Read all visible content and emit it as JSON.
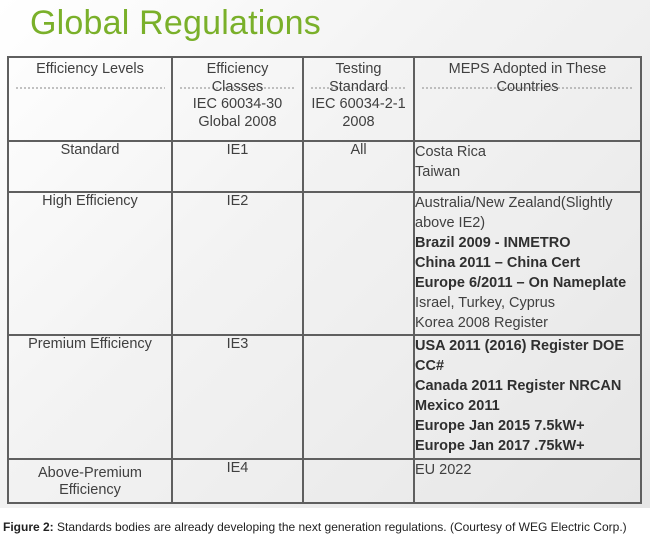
{
  "title": "Global Regulations",
  "table": {
    "headers": [
      [
        "Efficiency Levels"
      ],
      [
        "Efficiency Classes",
        "IEC 60034-30",
        "Global 2008"
      ],
      [
        "Testing",
        "Standard",
        "IEC 60034-2-1",
        "2008"
      ],
      [
        "MEPS Adopted in These",
        "Countries"
      ]
    ],
    "rows": [
      {
        "level": "Standard",
        "class": "IE1",
        "testing": "All",
        "countries": [
          {
            "text": "Costa Rica",
            "bold": false
          },
          {
            "text": "Taiwan",
            "bold": false
          }
        ]
      },
      {
        "level": "High Efficiency",
        "class": "IE2",
        "testing": "",
        "countries": [
          {
            "text": "Australia/New Zealand(Slightly above IE2)",
            "bold": false
          },
          {
            "text": "Brazil 2009  - INMETRO",
            "bold": true
          },
          {
            "text": "China 2011 – China Cert",
            "bold": true
          },
          {
            "text": "Europe 6/2011 – On Nameplate",
            "bold": true
          },
          {
            "text": "Israel, Turkey, Cyprus",
            "bold": false
          },
          {
            "text": "Korea 2008 Register",
            "bold": false
          }
        ]
      },
      {
        "level": "Premium Efficiency",
        "class": "IE3",
        "testing": "",
        "countries": [
          {
            "text": "USA 2011 (2016)  Register DOE CC#",
            "bold": true
          },
          {
            "text": "Canada 2011 Register NRCAN",
            "bold": true
          },
          {
            "text": "Mexico 2011",
            "bold": true
          },
          {
            "text": "Europe Jan 2015 7.5kW+",
            "bold": true
          },
          {
            "text": "Europe Jan 2017 .75kW+",
            "bold": true
          }
        ]
      },
      {
        "level": "Above-Premium Efficiency",
        "class": "IE4",
        "testing": "",
        "countries": [
          {
            "text": "EU 2022",
            "bold": false
          }
        ]
      }
    ]
  },
  "caption": {
    "label": "Figure 2:",
    "text": " Standards bodies are already developing the next generation regulations. (Courtesy of WEG Electric Corp.)"
  }
}
